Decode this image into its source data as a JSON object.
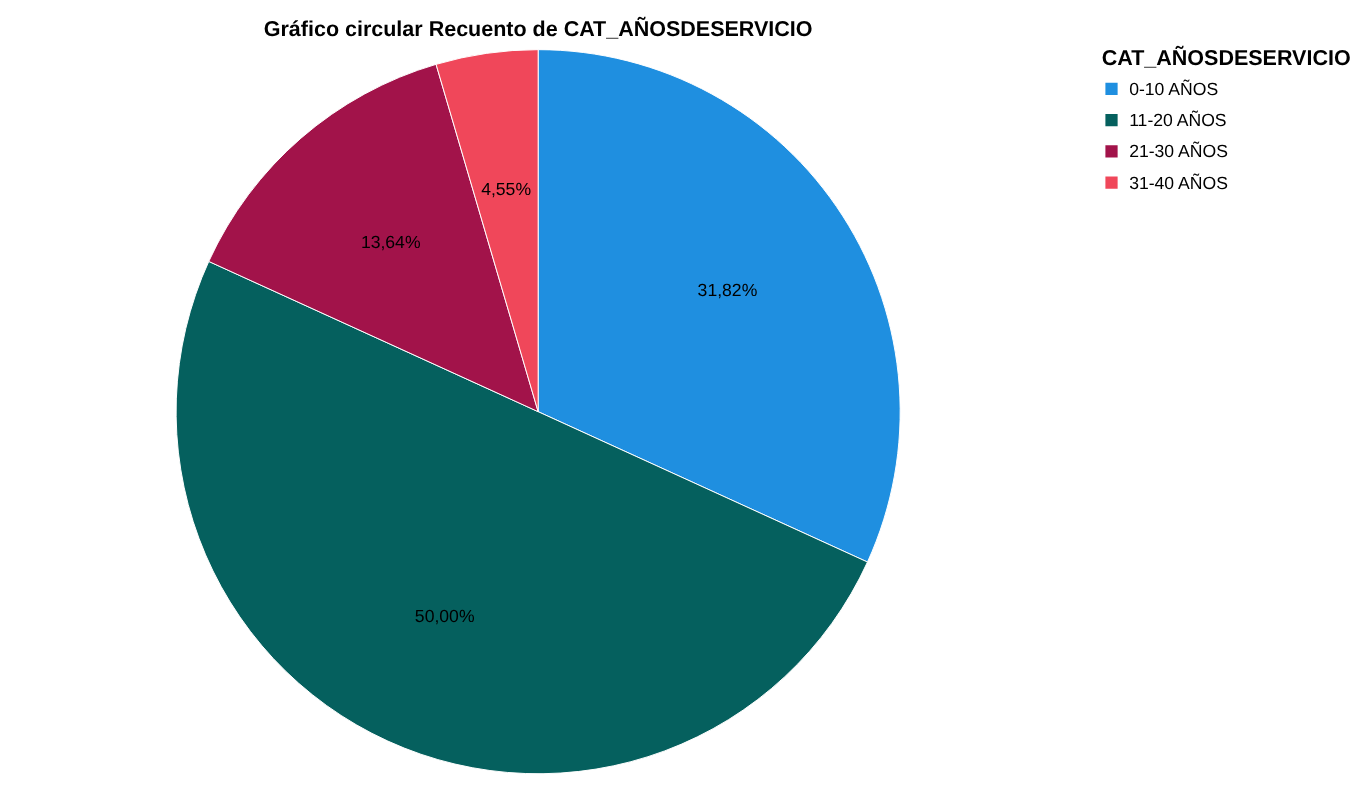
{
  "chart_data": {
    "type": "pie",
    "title": "Gráfico circular Recuento de CAT_AÑOSDESERVICIO",
    "legend_title": "CAT_AÑOSDESERVICIO",
    "categories": [
      "0-10 AÑOS",
      "11-20 AÑOS",
      "21-30 AÑOS",
      "31-40 AÑOS"
    ],
    "values": [
      31.82,
      50.0,
      13.64,
      4.55
    ],
    "colors": [
      "#1f8fe0",
      "#05605e",
      "#a2134a",
      "#f0475a"
    ],
    "value_labels": [
      "31,82%",
      "50,00%",
      "13,64%",
      "4,55%"
    ],
    "legend": "top right"
  }
}
